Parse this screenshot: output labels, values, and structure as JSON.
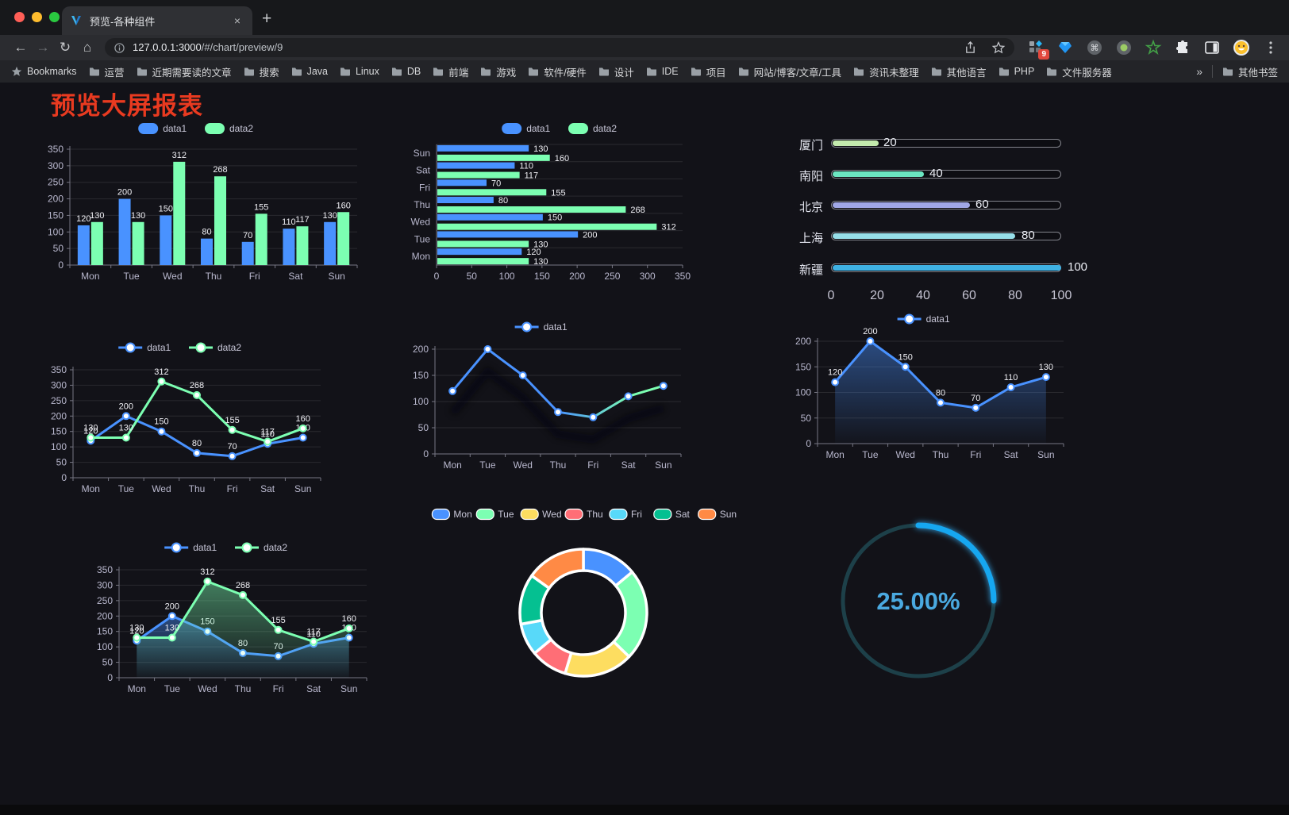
{
  "browser": {
    "tab": {
      "title": "预览-各种组件"
    },
    "icons": {
      "back": "←",
      "forward": "→",
      "reload": "↻",
      "home": "⌂",
      "close_tab": "×",
      "new_tab": "+"
    },
    "address": {
      "host": "127.0.0.1:3000",
      "path": "/#/chart/preview/9"
    },
    "extension_badge": "9",
    "bookmarks_label": "Bookmarks",
    "folders": [
      "运营",
      "近期需要读的文章",
      "搜索",
      "Java",
      "Linux",
      "DB",
      "前端",
      "游戏",
      "软件/硬件",
      "设计",
      "IDE",
      "项目",
      "网站/博客/文章/工具",
      "资讯未整理",
      "其他语言",
      "PHP",
      "文件服务器"
    ],
    "overflow": "»",
    "other_bookmarks": "其他书签"
  },
  "page": {
    "title": "预览大屏报表",
    "title_color": "#e93a20",
    "background": "#121218"
  },
  "chart_data": [
    {
      "type": "bar",
      "title": "grouped vertical bars",
      "categories": [
        "Mon",
        "Tue",
        "Wed",
        "Thu",
        "Fri",
        "Sat",
        "Sun"
      ],
      "series": [
        {
          "name": "data1",
          "color": "#4992ff",
          "values": [
            120,
            200,
            150,
            80,
            70,
            110,
            130
          ]
        },
        {
          "name": "data2",
          "color": "#7cffb2",
          "values": [
            130,
            130,
            312,
            268,
            155,
            117,
            160
          ]
        }
      ],
      "ylim": [
        0,
        350
      ],
      "ystep": 50,
      "grid": true,
      "legend_position": "top",
      "value_labels": true
    },
    {
      "type": "bar-horizontal",
      "title": "grouped horizontal bars",
      "categories": [
        "Mon",
        "Tue",
        "Wed",
        "Thu",
        "Fri",
        "Sat",
        "Sun"
      ],
      "series": [
        {
          "name": "data1",
          "color": "#4992ff",
          "values": [
            120,
            200,
            150,
            80,
            70,
            110,
            130
          ]
        },
        {
          "name": "data2",
          "color": "#7cffb2",
          "values": [
            130,
            130,
            312,
            268,
            155,
            117,
            160
          ]
        }
      ],
      "xlim": [
        0,
        350
      ],
      "xstep": 50,
      "grid": true,
      "legend_position": "top",
      "value_labels": true
    },
    {
      "type": "progress",
      "title": "capsule progress bars",
      "items": [
        {
          "label": "厦门",
          "value": 20,
          "color": "#c4ebad"
        },
        {
          "label": "南阳",
          "value": 40,
          "color": "#6be6c1"
        },
        {
          "label": "北京",
          "value": 60,
          "color": "#a0a7e6"
        },
        {
          "label": "上海",
          "value": 80,
          "color": "#96dee8"
        },
        {
          "label": "新疆",
          "value": 100,
          "color": "#3fb1e3"
        }
      ],
      "max": 100,
      "axis_ticks": [
        0,
        20,
        40,
        60,
        80,
        100
      ]
    },
    {
      "type": "line",
      "title": "two series line",
      "categories": [
        "Mon",
        "Tue",
        "Wed",
        "Thu",
        "Fri",
        "Sat",
        "Sun"
      ],
      "series": [
        {
          "name": "data1",
          "color": "#4992ff",
          "values": [
            120,
            200,
            150,
            80,
            70,
            110,
            130
          ]
        },
        {
          "name": "data2",
          "color": "#7cffb2",
          "values": [
            130,
            130,
            312,
            268,
            155,
            117,
            160
          ]
        }
      ],
      "ylim": [
        0,
        350
      ],
      "ystep": 50,
      "grid": true,
      "legend_position": "top",
      "value_labels": true
    },
    {
      "type": "line-gradient",
      "title": "gradient line",
      "categories": [
        "Mon",
        "Tue",
        "Wed",
        "Thu",
        "Fri",
        "Sat",
        "Sun"
      ],
      "series": [
        {
          "name": "data1",
          "color": "#4992ff",
          "gradient": [
            "#4992ff",
            "#7cffb2"
          ],
          "values": [
            120,
            200,
            150,
            80,
            70,
            110,
            130
          ]
        }
      ],
      "ylim": [
        0,
        200
      ],
      "ystep": 50,
      "grid": true,
      "legend_position": "top",
      "value_labels": false
    },
    {
      "type": "area",
      "title": "area line",
      "categories": [
        "Mon",
        "Tue",
        "Wed",
        "Thu",
        "Fri",
        "Sat",
        "Sun"
      ],
      "series": [
        {
          "name": "data1",
          "color": "#4992ff",
          "values": [
            120,
            200,
            150,
            80,
            70,
            110,
            130
          ]
        }
      ],
      "ylim": [
        0,
        200
      ],
      "ystep": 50,
      "grid": true,
      "legend_position": "top",
      "value_labels": true
    },
    {
      "type": "line-area",
      "title": "two series line with area",
      "categories": [
        "Mon",
        "Tue",
        "Wed",
        "Thu",
        "Fri",
        "Sat",
        "Sun"
      ],
      "series": [
        {
          "name": "data1",
          "color": "#4992ff",
          "values": [
            120,
            200,
            150,
            80,
            70,
            110,
            130
          ]
        },
        {
          "name": "data2",
          "color": "#7cffb2",
          "values": [
            130,
            130,
            312,
            268,
            155,
            117,
            160
          ]
        }
      ],
      "ylim": [
        0,
        350
      ],
      "ystep": 50,
      "grid": true,
      "legend_position": "top",
      "value_labels": true
    },
    {
      "type": "pie",
      "title": "donut",
      "categories": [
        "Mon",
        "Tue",
        "Wed",
        "Thu",
        "Fri",
        "Sat",
        "Sun"
      ],
      "values": [
        120,
        200,
        150,
        80,
        70,
        110,
        130
      ],
      "colors": [
        "#4992ff",
        "#7cffb2",
        "#fddd60",
        "#ff6e76",
        "#58d9f9",
        "#05c091",
        "#ff8a45"
      ],
      "legend_position": "top",
      "inner_radius": 53,
      "outer_radius": 80
    },
    {
      "type": "gauge",
      "title": "ring progress",
      "value": 25,
      "label": "25.00%",
      "color": "#18a7f0",
      "track_color": "#1d4049",
      "text_color": "#4aa9e0"
    }
  ]
}
